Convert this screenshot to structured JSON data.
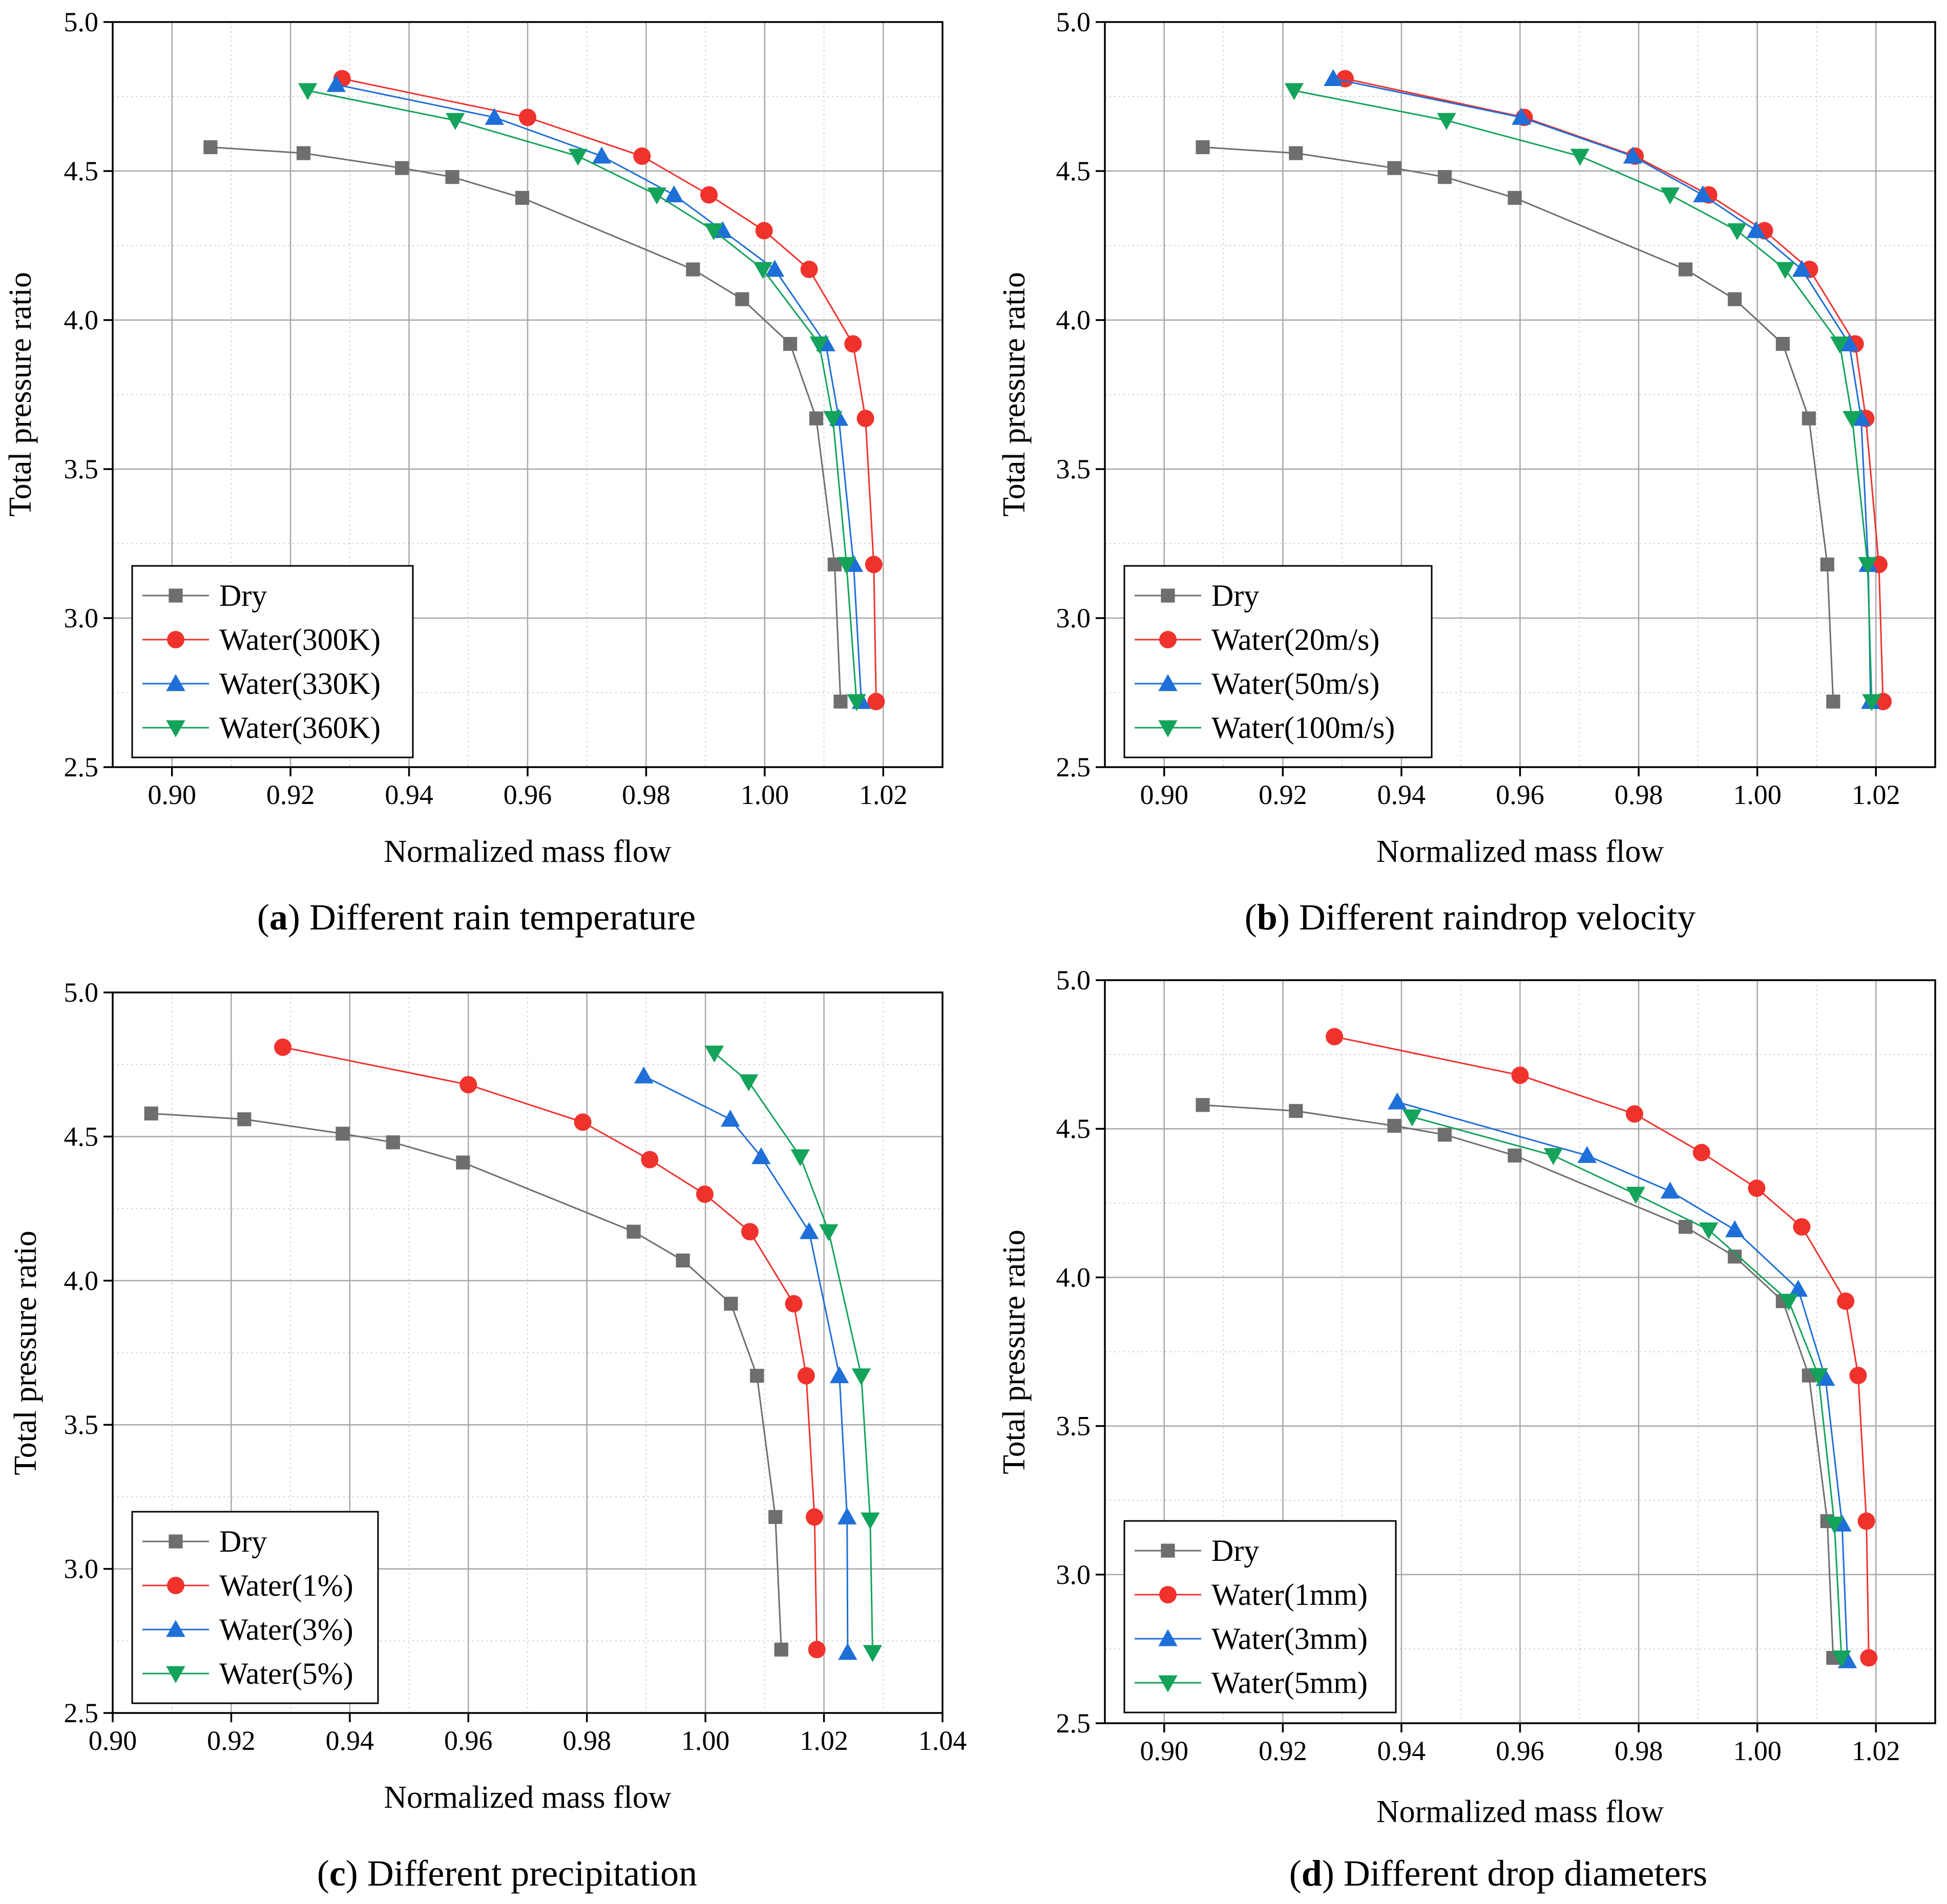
{
  "chart_data": [
    {
      "type": "line",
      "panel_letter": "a",
      "caption": "Different rain temperature",
      "xlabel": "Normalized mass flow",
      "ylabel": "Total pressure ratio",
      "xlim": [
        0.89,
        1.03
      ],
      "ylim": [
        2.5,
        5.0
      ],
      "xticks": [
        0.9,
        0.92,
        0.94,
        0.96,
        0.98,
        1.0,
        1.02
      ],
      "xtick_labels": [
        "0.90",
        "0.92",
        "0.94",
        "0.96",
        "0.98",
        "1.00",
        "1.02"
      ],
      "yticks": [
        2.5,
        3.0,
        3.5,
        4.0,
        4.5,
        5.0
      ],
      "ytick_labels": [
        "2.5",
        "3.0",
        "3.5",
        "4.0",
        "4.5",
        "5.0"
      ],
      "legend_position": "bottom-left",
      "grid": true,
      "series": [
        {
          "name": "Dry",
          "color": "#6e6e6e",
          "marker": "square",
          "x": [
            0.9065,
            0.9222,
            0.9388,
            0.9473,
            0.9591,
            0.9879,
            0.9962,
            1.0043,
            1.0087,
            1.0118,
            1.0128
          ],
          "y": [
            4.58,
            4.56,
            4.51,
            4.48,
            4.41,
            4.17,
            4.07,
            3.92,
            3.67,
            3.18,
            2.72
          ]
        },
        {
          "name": "Water(300K)",
          "color": "#f0322d",
          "marker": "circle",
          "x": [
            0.9287,
            0.96,
            0.9793,
            0.9906,
            0.9999,
            1.0075,
            1.0149,
            1.017,
            1.0184,
            1.0188
          ],
          "y": [
            4.81,
            4.68,
            4.55,
            4.42,
            4.3,
            4.17,
            3.92,
            3.67,
            3.18,
            2.72
          ]
        },
        {
          "name": "Water(330K)",
          "color": "#1e6fd8",
          "marker": "triangle-up",
          "x": [
            0.9277,
            0.9544,
            0.9725,
            0.9847,
            0.9929,
            1.0017,
            1.0103,
            1.0125,
            1.015,
            1.0163
          ],
          "y": [
            4.79,
            4.68,
            4.55,
            4.42,
            4.3,
            4.17,
            3.92,
            3.67,
            3.18,
            2.72
          ]
        },
        {
          "name": "Water(360K)",
          "color": "#14a35a",
          "marker": "triangle-down",
          "x": [
            0.9229,
            0.9478,
            0.9685,
            0.9818,
            0.9914,
            0.9997,
            1.0092,
            1.0115,
            1.0138,
            1.0155
          ],
          "y": [
            4.77,
            4.67,
            4.55,
            4.42,
            4.3,
            4.17,
            3.92,
            3.67,
            3.18,
            2.72
          ]
        }
      ]
    },
    {
      "type": "line",
      "panel_letter": "b",
      "caption": "Different raindrop velocity",
      "xlabel": "Normalized mass flow",
      "ylabel": "Total pressure ratio",
      "xlim": [
        0.89,
        1.03
      ],
      "ylim": [
        2.5,
        5.0
      ],
      "xticks": [
        0.9,
        0.92,
        0.94,
        0.96,
        0.98,
        1.0,
        1.02
      ],
      "xtick_labels": [
        "0.90",
        "0.92",
        "0.94",
        "0.96",
        "0.98",
        "1.00",
        "1.02"
      ],
      "yticks": [
        2.5,
        3.0,
        3.5,
        4.0,
        4.5,
        5.0
      ],
      "ytick_labels": [
        "2.5",
        "3.0",
        "3.5",
        "4.0",
        "4.5",
        "5.0"
      ],
      "legend_position": "bottom-left",
      "grid": true,
      "series": [
        {
          "name": "Dry",
          "color": "#6e6e6e",
          "marker": "square",
          "x": [
            0.9065,
            0.9222,
            0.9388,
            0.9473,
            0.9591,
            0.9879,
            0.9962,
            1.0043,
            1.0087,
            1.0118,
            1.0128
          ],
          "y": [
            4.58,
            4.56,
            4.51,
            4.48,
            4.41,
            4.17,
            4.07,
            3.92,
            3.67,
            3.18,
            2.72
          ]
        },
        {
          "name": "Water(20m/s)",
          "color": "#f0322d",
          "marker": "circle",
          "x": [
            0.9305,
            0.9607,
            0.9794,
            0.9918,
            1.0012,
            1.0088,
            1.0165,
            1.0183,
            1.0205,
            1.0212
          ],
          "y": [
            4.81,
            4.68,
            4.55,
            4.42,
            4.3,
            4.17,
            3.92,
            3.67,
            3.18,
            2.72
          ]
        },
        {
          "name": "Water(50m/s)",
          "color": "#1e6fd8",
          "marker": "triangle-up",
          "x": [
            0.9285,
            0.9602,
            0.979,
            0.9908,
            0.9998,
            1.0075,
            1.0155,
            1.0175,
            1.0187,
            1.0191
          ],
          "y": [
            4.81,
            4.68,
            4.55,
            4.42,
            4.3,
            4.17,
            3.92,
            3.67,
            3.18,
            2.72
          ]
        },
        {
          "name": "Water(100m/s)",
          "color": "#14a35a",
          "marker": "triangle-down",
          "x": [
            0.9219,
            0.9476,
            0.9701,
            0.9853,
            0.9966,
            1.0047,
            1.0139,
            1.016,
            1.0186,
            1.0193
          ],
          "y": [
            4.77,
            4.67,
            4.55,
            4.42,
            4.3,
            4.17,
            3.92,
            3.67,
            3.18,
            2.72
          ]
        }
      ]
    },
    {
      "type": "line",
      "panel_letter": "c",
      "caption": "Different precipitation",
      "xlabel": "Normalized mass flow",
      "ylabel": "Total pressure ratio",
      "xlim": [
        0.9,
        1.04
      ],
      "ylim": [
        2.5,
        5.0
      ],
      "xticks": [
        0.9,
        0.92,
        0.94,
        0.96,
        0.98,
        1.0,
        1.02,
        1.04
      ],
      "xtick_labels": [
        "0.90",
        "0.92",
        "0.94",
        "0.96",
        "0.98",
        "1.00",
        "1.02",
        "1.04"
      ],
      "yticks": [
        2.5,
        3.0,
        3.5,
        4.0,
        4.5,
        5.0
      ],
      "ytick_labels": [
        "2.5",
        "3.0",
        "3.5",
        "4.0",
        "4.5",
        "5.0"
      ],
      "legend_position": "bottom-left",
      "grid": true,
      "series": [
        {
          "name": "Dry",
          "color": "#6e6e6e",
          "marker": "square",
          "x": [
            0.9065,
            0.9222,
            0.9388,
            0.9473,
            0.9591,
            0.9879,
            0.9962,
            1.0043,
            1.0087,
            1.0118,
            1.0128
          ],
          "y": [
            4.58,
            4.56,
            4.51,
            4.48,
            4.41,
            4.17,
            4.07,
            3.92,
            3.67,
            3.18,
            2.72
          ]
        },
        {
          "name": "Water(1%)",
          "color": "#f0322d",
          "marker": "circle",
          "x": [
            0.9287,
            0.96,
            0.9793,
            0.9906,
            0.9999,
            1.0075,
            1.0149,
            1.017,
            1.0184,
            1.0188
          ],
          "y": [
            4.81,
            4.68,
            4.55,
            4.42,
            4.3,
            4.17,
            3.92,
            3.67,
            3.18,
            2.72
          ]
        },
        {
          "name": "Water(3%)",
          "color": "#1e6fd8",
          "marker": "triangle-up",
          "x": [
            0.9896,
            1.0042,
            1.0094,
            1.0175,
            1.0226,
            1.0239,
            1.024
          ],
          "y": [
            4.71,
            4.56,
            4.43,
            4.17,
            3.67,
            3.18,
            2.71
          ]
        },
        {
          "name": "Water(5%)",
          "color": "#14a35a",
          "marker": "triangle-down",
          "x": [
            1.0015,
            1.0073,
            1.016,
            1.0208,
            1.0263,
            1.0278,
            1.0282
          ],
          "y": [
            4.79,
            4.69,
            4.43,
            4.17,
            3.67,
            3.17,
            2.71
          ]
        }
      ]
    },
    {
      "type": "line",
      "panel_letter": "d",
      "caption": "Different drop diameters",
      "xlabel": "Normalized mass flow",
      "ylabel": "Total pressure ratio",
      "xlim": [
        0.89,
        1.03
      ],
      "ylim": [
        2.5,
        5.0
      ],
      "xticks": [
        0.9,
        0.92,
        0.94,
        0.96,
        0.98,
        1.0,
        1.02
      ],
      "xtick_labels": [
        "0.90",
        "0.92",
        "0.94",
        "0.96",
        "0.98",
        "1.00",
        "1.02"
      ],
      "yticks": [
        2.5,
        3.0,
        3.5,
        4.0,
        4.5,
        5.0
      ],
      "ytick_labels": [
        "2.5",
        "3.0",
        "3.5",
        "4.0",
        "4.5",
        "5.0"
      ],
      "legend_position": "bottom-left",
      "grid": true,
      "series": [
        {
          "name": "Dry",
          "color": "#6e6e6e",
          "marker": "square",
          "x": [
            0.9065,
            0.9222,
            0.9388,
            0.9473,
            0.9591,
            0.9879,
            0.9962,
            1.0043,
            1.0087,
            1.0118,
            1.0128
          ],
          "y": [
            4.58,
            4.56,
            4.51,
            4.48,
            4.41,
            4.17,
            4.07,
            3.92,
            3.67,
            3.18,
            2.72
          ]
        },
        {
          "name": "Water(1mm)",
          "color": "#f0322d",
          "marker": "circle",
          "x": [
            0.9287,
            0.96,
            0.9793,
            0.9906,
            0.9999,
            1.0075,
            1.0149,
            1.017,
            1.0184,
            1.0188
          ],
          "y": [
            4.81,
            4.68,
            4.55,
            4.42,
            4.3,
            4.17,
            3.92,
            3.67,
            3.18,
            2.72
          ]
        },
        {
          "name": "Water(3mm)",
          "color": "#1e6fd8",
          "marker": "triangle-up",
          "x": [
            0.9393,
            0.9713,
            0.9853,
            0.9962,
            1.0069,
            1.0115,
            1.0143,
            1.0152
          ],
          "y": [
            4.59,
            4.41,
            4.29,
            4.16,
            3.96,
            3.66,
            3.17,
            2.71
          ]
        },
        {
          "name": "Water(5mm)",
          "color": "#14a35a",
          "marker": "triangle-down",
          "x": [
            0.9418,
            0.9656,
            0.9795,
            0.9918,
            1.0053,
            1.0103,
            1.013,
            1.0142
          ],
          "y": [
            4.54,
            4.41,
            4.28,
            4.16,
            3.92,
            3.67,
            3.17,
            2.72
          ]
        }
      ]
    }
  ]
}
